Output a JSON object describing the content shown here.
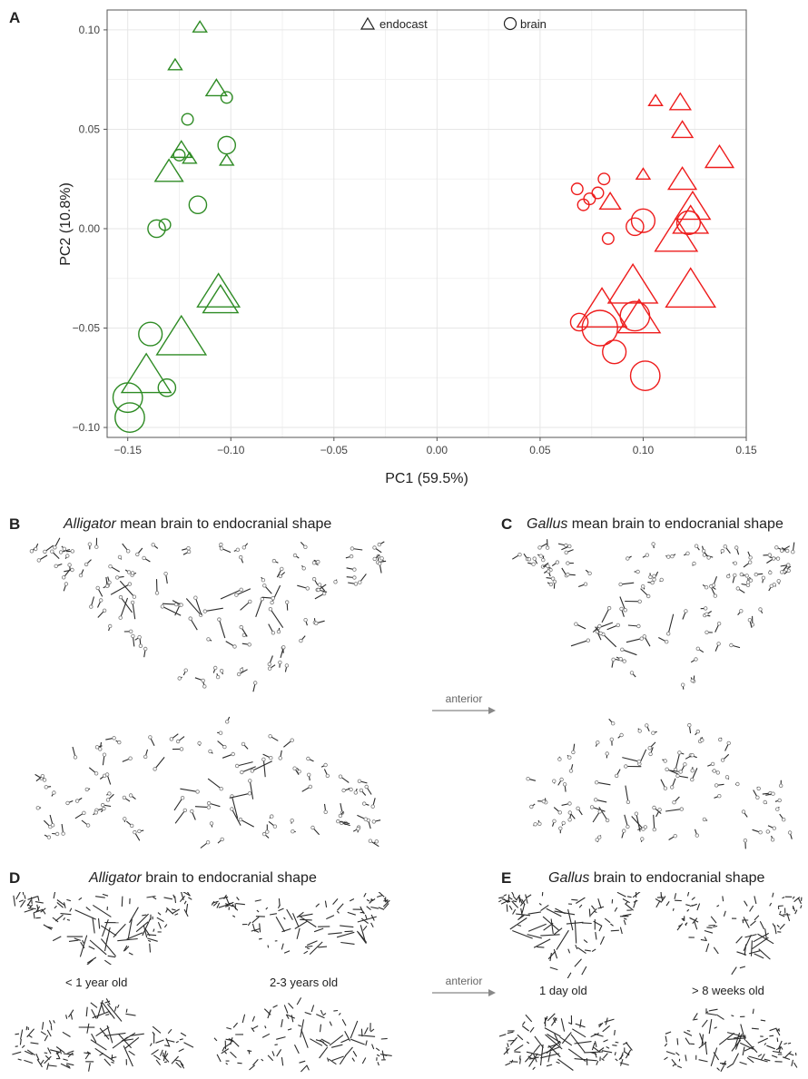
{
  "panels": {
    "A": "A",
    "B": "B",
    "C": "C",
    "D": "D",
    "E": "E"
  },
  "titles": {
    "B_genus": "Alligator",
    "B_rest": " mean brain to endocranial shape",
    "C_genus": "Gallus",
    "C_rest": " mean brain to endocranial shape",
    "D_genus": "Alligator",
    "D_rest": " brain to endocranial shape",
    "E_genus": "Gallus",
    "E_rest": " brain to endocranial shape"
  },
  "arrow_label": "anterior",
  "age_labels": {
    "alligator_young": "< 1 year old",
    "alligator_old": "2-3 years old",
    "gallus_young": "1 day old",
    "gallus_old": "> 8 weeks old"
  },
  "colors": {
    "alligator": "#2e8b24",
    "gallus": "#ee1c1c",
    "grid": "#e6e6e6",
    "vector": "#2b2b2b"
  },
  "chart_data": {
    "type": "scatter",
    "xlabel": "PC1 (59.5%)",
    "ylabel": "PC2 (10.8%)",
    "xlim": [
      -0.16,
      0.15
    ],
    "ylim": [
      -0.105,
      0.11
    ],
    "xticks": [
      -0.15,
      -0.1,
      -0.05,
      0.0,
      0.05,
      0.1,
      0.15
    ],
    "xtick_labels": [
      "−0.15",
      "−0.10",
      "−0.05",
      "0.00",
      "0.05",
      "0.10",
      "0.15"
    ],
    "yticks": [
      -0.1,
      -0.05,
      0.0,
      0.05,
      0.1
    ],
    "ytick_labels": [
      "−0.10",
      "−0.05",
      "0.00",
      "0.05",
      "0.10"
    ],
    "grid": true,
    "legend_position": "top-center",
    "legend": [
      {
        "shape": "triangle",
        "label": "endocast"
      },
      {
        "shape": "circle",
        "label": "brain"
      }
    ],
    "series": [
      {
        "group": "alligator",
        "shape": "triangle",
        "points": [
          {
            "x": -0.115,
            "y": 0.101,
            "size": 1
          },
          {
            "x": -0.127,
            "y": 0.082,
            "size": 1
          },
          {
            "x": -0.107,
            "y": 0.07,
            "size": 2
          },
          {
            "x": -0.102,
            "y": 0.034,
            "size": 1
          },
          {
            "x": -0.124,
            "y": 0.039,
            "size": 2
          },
          {
            "x": -0.12,
            "y": 0.035,
            "size": 1
          },
          {
            "x": -0.13,
            "y": 0.028,
            "size": 3
          },
          {
            "x": -0.106,
            "y": -0.033,
            "size": 5
          },
          {
            "x": -0.105,
            "y": -0.037,
            "size": 4
          },
          {
            "x": -0.124,
            "y": -0.056,
            "size": 6
          },
          {
            "x": -0.141,
            "y": -0.075,
            "size": 6
          }
        ]
      },
      {
        "group": "alligator",
        "shape": "circle",
        "points": [
          {
            "x": -0.102,
            "y": 0.066,
            "size": 1
          },
          {
            "x": -0.121,
            "y": 0.055,
            "size": 1
          },
          {
            "x": -0.125,
            "y": 0.037,
            "size": 1
          },
          {
            "x": -0.102,
            "y": 0.042,
            "size": 2
          },
          {
            "x": -0.132,
            "y": 0.002,
            "size": 1
          },
          {
            "x": -0.116,
            "y": 0.012,
            "size": 2
          },
          {
            "x": -0.136,
            "y": 0.0,
            "size": 2
          },
          {
            "x": -0.139,
            "y": -0.053,
            "size": 3
          },
          {
            "x": -0.131,
            "y": -0.08,
            "size": 2
          },
          {
            "x": -0.15,
            "y": -0.085,
            "size": 4
          },
          {
            "x": -0.149,
            "y": -0.095,
            "size": 4
          }
        ]
      },
      {
        "group": "gallus",
        "shape": "triangle",
        "points": [
          {
            "x": 0.106,
            "y": 0.064,
            "size": 1
          },
          {
            "x": 0.118,
            "y": 0.063,
            "size": 2
          },
          {
            "x": 0.119,
            "y": 0.049,
            "size": 2
          },
          {
            "x": 0.137,
            "y": 0.035,
            "size": 3
          },
          {
            "x": 0.1,
            "y": 0.027,
            "size": 1
          },
          {
            "x": 0.119,
            "y": 0.024,
            "size": 3
          },
          {
            "x": 0.084,
            "y": 0.013,
            "size": 2
          },
          {
            "x": 0.124,
            "y": 0.01,
            "size": 4
          },
          {
            "x": 0.123,
            "y": 0.003,
            "size": 4
          },
          {
            "x": 0.116,
            "y": -0.005,
            "size": 5
          },
          {
            "x": 0.095,
            "y": -0.03,
            "size": 6
          },
          {
            "x": 0.123,
            "y": -0.032,
            "size": 6
          },
          {
            "x": 0.08,
            "y": -0.042,
            "size": 6
          },
          {
            "x": 0.098,
            "y": -0.046,
            "size": 5
          }
        ]
      },
      {
        "group": "gallus",
        "shape": "circle",
        "points": [
          {
            "x": 0.081,
            "y": 0.025,
            "size": 1
          },
          {
            "x": 0.078,
            "y": 0.018,
            "size": 1
          },
          {
            "x": 0.068,
            "y": 0.02,
            "size": 1
          },
          {
            "x": 0.074,
            "y": 0.015,
            "size": 1
          },
          {
            "x": 0.071,
            "y": 0.012,
            "size": 1
          },
          {
            "x": 0.083,
            "y": -0.005,
            "size": 1
          },
          {
            "x": 0.1,
            "y": 0.004,
            "size": 3
          },
          {
            "x": 0.096,
            "y": 0.001,
            "size": 2
          },
          {
            "x": 0.122,
            "y": 0.003,
            "size": 3
          },
          {
            "x": 0.069,
            "y": -0.047,
            "size": 2
          },
          {
            "x": 0.079,
            "y": -0.05,
            "size": 5
          },
          {
            "x": 0.096,
            "y": -0.044,
            "size": 4
          },
          {
            "x": 0.086,
            "y": -0.062,
            "size": 3
          },
          {
            "x": 0.101,
            "y": -0.074,
            "size": 4
          }
        ]
      }
    ]
  }
}
